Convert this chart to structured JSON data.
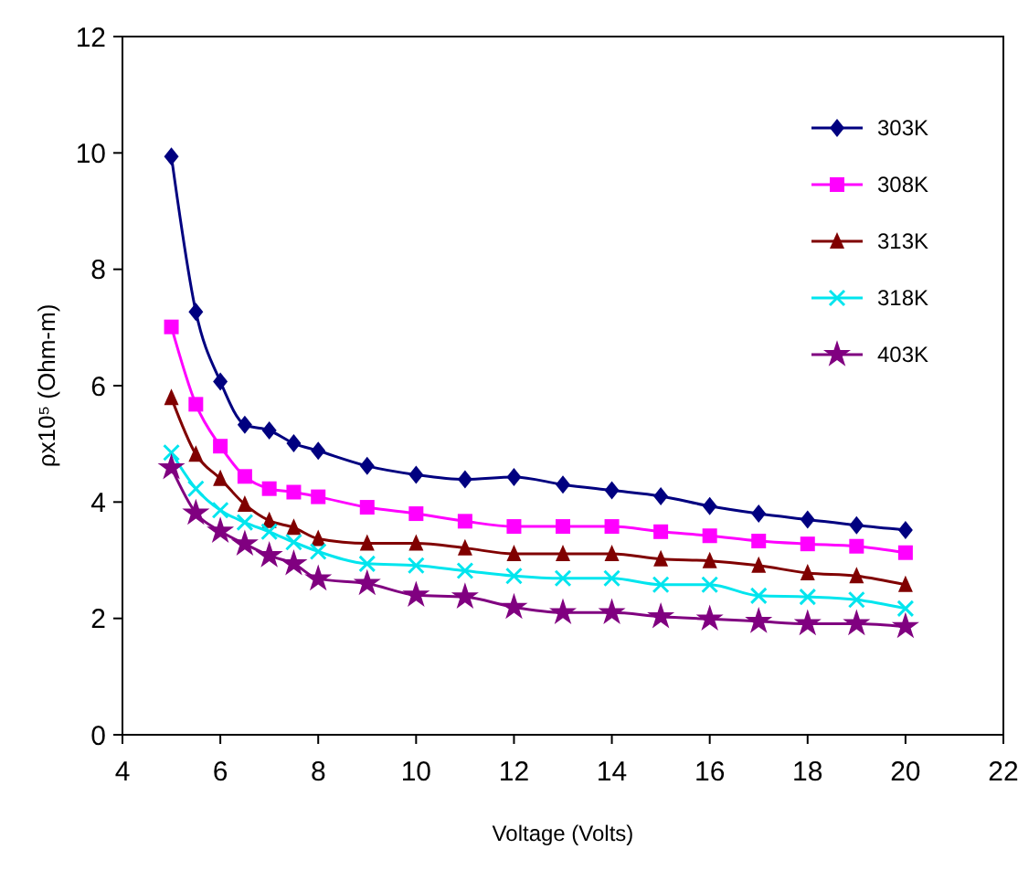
{
  "chart_data": {
    "type": "line",
    "xlabel": "Voltage (Volts)",
    "ylabel": "ρx10⁵ (Ohm-m)",
    "x": [
      5,
      5.5,
      6,
      6.5,
      7,
      7.5,
      8,
      9,
      10,
      11,
      12,
      13,
      14,
      15,
      16,
      17,
      18,
      19,
      20
    ],
    "xlim": [
      4,
      22
    ],
    "xticks": [
      4,
      6,
      8,
      10,
      12,
      14,
      16,
      18,
      20,
      22
    ],
    "ylim": [
      0,
      12
    ],
    "yticks": [
      0,
      2,
      4,
      6,
      8,
      10,
      12
    ],
    "grid": false,
    "legend": "top right",
    "series": [
      {
        "name": "303K",
        "color": "#000080",
        "marker": "diamond",
        "values": [
          9.94,
          7.27,
          6.07,
          5.33,
          5.23,
          5.01,
          4.88,
          4.62,
          4.47,
          4.39,
          4.43,
          4.3,
          4.2,
          4.1,
          3.93,
          3.8,
          3.7,
          3.6,
          3.52
        ]
      },
      {
        "name": "308K",
        "color": "#ff00ff",
        "marker": "square",
        "values": [
          7.01,
          5.68,
          4.96,
          4.44,
          4.23,
          4.17,
          4.09,
          3.91,
          3.8,
          3.67,
          3.58,
          3.58,
          3.58,
          3.49,
          3.42,
          3.33,
          3.28,
          3.24,
          3.13
        ]
      },
      {
        "name": "313K",
        "color": "#800000",
        "marker": "triangle",
        "values": [
          5.79,
          4.82,
          4.4,
          3.96,
          3.68,
          3.56,
          3.37,
          3.29,
          3.29,
          3.21,
          3.11,
          3.11,
          3.11,
          3.02,
          2.99,
          2.91,
          2.78,
          2.73,
          2.58
        ]
      },
      {
        "name": "318K",
        "color": "#00e5ee",
        "marker": "cross",
        "values": [
          4.85,
          4.23,
          3.86,
          3.65,
          3.49,
          3.31,
          3.15,
          2.94,
          2.91,
          2.82,
          2.73,
          2.69,
          2.69,
          2.58,
          2.58,
          2.39,
          2.37,
          2.32,
          2.17
        ]
      },
      {
        "name": "403K",
        "color": "#800080",
        "marker": "star",
        "values": [
          4.59,
          3.81,
          3.5,
          3.28,
          3.08,
          2.94,
          2.68,
          2.6,
          2.4,
          2.37,
          2.19,
          2.1,
          2.1,
          2.03,
          1.99,
          1.95,
          1.91,
          1.91,
          1.86
        ]
      }
    ]
  }
}
